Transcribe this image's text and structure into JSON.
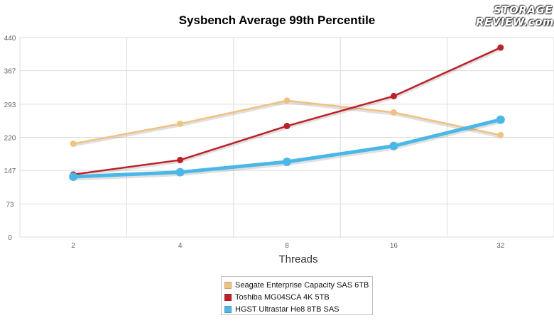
{
  "logo": {
    "line1": "STORAGE",
    "line2": "REVIEW.com"
  },
  "chart_data": {
    "type": "line",
    "title": "Sysbench Average 99th Percentile",
    "xlabel": "Threads",
    "ylabel": "",
    "categories": [
      "2",
      "4",
      "8",
      "16",
      "32"
    ],
    "yticks": [
      "0",
      "73",
      "147",
      "220",
      "293",
      "367",
      "440"
    ],
    "ylim": [
      0,
      440
    ],
    "grid": true,
    "legend_position": "bottom-center",
    "series": [
      {
        "name": "Seagate Enterprise Capacity SAS 6TB",
        "color": "#f0c27f",
        "values": [
          206,
          250,
          301,
          275,
          225
        ]
      },
      {
        "name": "Toshiba MG04SCA 4K 5TB",
        "color": "#be2026",
        "values": [
          138,
          170,
          245,
          311,
          418
        ]
      },
      {
        "name": "HGST Ultrastar He8 8TB SAS",
        "color": "#49b8e8",
        "values": [
          133,
          143,
          166,
          201,
          259
        ]
      }
    ]
  }
}
